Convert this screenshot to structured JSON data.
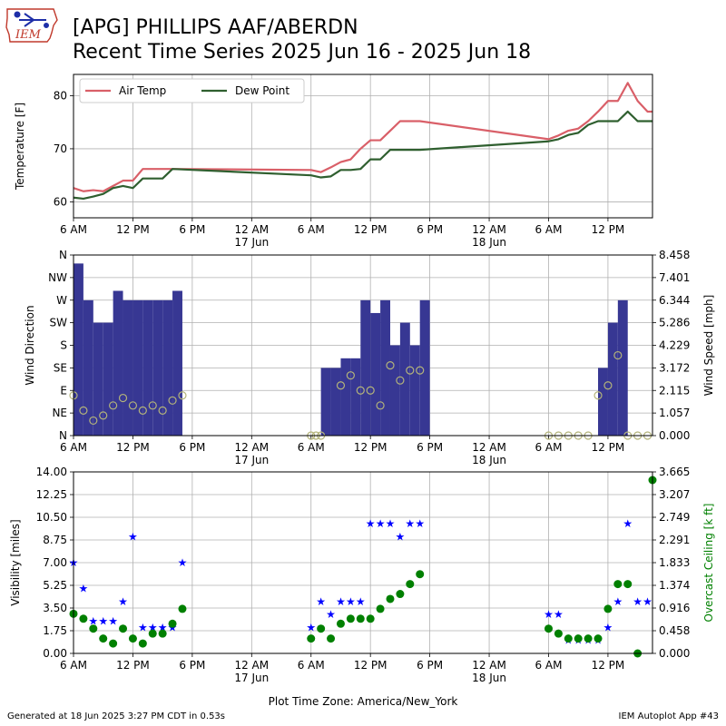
{
  "header": {
    "title_line1": "[APG] PHILLIPS AAF/ABERDN",
    "title_line2": "Recent Time Series 2025 Jun 16 - 2025 Jun 18",
    "logo_text": "IEM"
  },
  "footer": {
    "generated": "Generated at 18 Jun 2025 3:27 PM CDT in 0.53s",
    "app": "IEM Autoplot App #43"
  },
  "colors": {
    "air_temp": "#d95f68",
    "dew_point": "#2f5f2f",
    "wind_bar": "#373793",
    "wind_dir_marker": "#b3b37a",
    "visibility": "#0000ff",
    "ceiling": "#008000"
  },
  "x_axis": {
    "tick_hours": [
      0,
      6,
      12,
      18,
      24,
      30,
      36,
      42,
      48,
      54
    ],
    "tick_labels": [
      "6 AM",
      "12 PM",
      "6 PM",
      "12 AM",
      "6 AM",
      "12 PM",
      "6 PM",
      "12 AM",
      "6 AM",
      "12 PM"
    ],
    "day_labels": [
      {
        "hour": 18,
        "text": "17 Jun"
      },
      {
        "hour": 42,
        "text": "18 Jun"
      }
    ],
    "range_hours": [
      0,
      58.5
    ],
    "xlabel": "Plot Time Zone: America/New_York"
  },
  "chart_data": [
    {
      "type": "line",
      "ylabel": "Temperature [F]",
      "ylim": [
        57,
        84
      ],
      "yticks": [
        60,
        70,
        80
      ],
      "grid": true,
      "legend": "top-left",
      "series": [
        {
          "name": "Air Temp",
          "x": [
            0,
            1,
            2,
            3,
            4,
            5,
            6,
            7,
            8,
            9,
            10,
            24,
            25,
            26,
            27,
            28,
            29,
            30,
            31,
            32,
            33,
            34,
            35,
            48,
            49,
            50,
            51,
            52,
            53,
            54,
            55,
            56,
            57,
            58,
            58.5
          ],
          "values": [
            62.6,
            62.0,
            62.2,
            62.0,
            63.0,
            64.0,
            64.0,
            66.2,
            66.2,
            66.2,
            66.2,
            66.0,
            65.6,
            66.5,
            67.5,
            68.0,
            70.0,
            71.6,
            71.6,
            73.4,
            75.2,
            75.2,
            75.2,
            71.8,
            72.5,
            73.4,
            73.8,
            75.2,
            77.0,
            79.0,
            79.0,
            82.4,
            79.0,
            77.0,
            77.0
          ]
        },
        {
          "name": "Dew Point",
          "x": [
            0,
            1,
            2,
            3,
            4,
            5,
            6,
            7,
            8,
            9,
            10,
            24,
            25,
            26,
            27,
            28,
            29,
            30,
            31,
            32,
            33,
            34,
            35,
            48,
            49,
            50,
            51,
            52,
            53,
            54,
            55,
            56,
            57,
            58,
            58.5
          ],
          "values": [
            60.8,
            60.6,
            61.0,
            61.5,
            62.6,
            63.0,
            62.6,
            64.4,
            64.4,
            64.4,
            66.2,
            65.0,
            64.6,
            64.8,
            66.0,
            66.0,
            66.2,
            68.0,
            68.0,
            69.8,
            69.8,
            69.8,
            69.8,
            71.4,
            71.8,
            72.6,
            73.0,
            74.5,
            75.2,
            75.2,
            75.2,
            77.0,
            75.2,
            75.2,
            75.2
          ]
        }
      ]
    },
    {
      "type": "bar",
      "ylabel": "Wind Direction",
      "y2label": "Wind Speed [mph]",
      "ylim": [
        0,
        360
      ],
      "yticks": [
        0,
        45,
        90,
        135,
        180,
        225,
        270,
        315,
        360
      ],
      "yticklabels": [
        "N",
        "NE",
        "E",
        "SE",
        "S",
        "SW",
        "W",
        "NW",
        "N"
      ],
      "y2lim": [
        0,
        8.458
      ],
      "y2ticks": [
        "0.000",
        "1.057",
        "2.115",
        "3.172",
        "4.229",
        "5.286",
        "6.344",
        "7.401",
        "8.458"
      ],
      "grid": true,
      "series": [
        {
          "name": "",
          "x": [
            0.5,
            1.5,
            2.5,
            3.5,
            4.5,
            5.5,
            6.5,
            7.5,
            8.5,
            9.5,
            10.5,
            25.5,
            26.5,
            27.5,
            28.5,
            29.5,
            30.5,
            31.5,
            32.5,
            33.5,
            34.5,
            35.5,
            53.5,
            54.5,
            55.5
          ],
          "values": [
            8.06,
            6.34,
            5.29,
            5.29,
            6.78,
            6.34,
            6.34,
            6.34,
            6.34,
            6.34,
            6.78,
            3.17,
            3.17,
            3.62,
            3.62,
            6.34,
            5.74,
            6.34,
            4.23,
            5.29,
            4.23,
            6.34,
            3.17,
            5.29,
            6.34
          ]
        },
        {
          "name": "",
          "x": [
            0,
            1,
            2,
            3,
            4,
            5,
            6,
            7,
            8,
            9,
            10,
            11,
            24,
            24.5,
            25,
            27,
            28,
            29,
            30,
            31,
            32,
            33,
            34,
            35,
            48,
            49,
            50,
            51,
            52,
            53,
            54,
            55,
            56,
            57,
            58
          ],
          "values": [
            80,
            50,
            30,
            40,
            60,
            75,
            60,
            50,
            60,
            50,
            70,
            80,
            0,
            0,
            0,
            100,
            120,
            90,
            90,
            60,
            140,
            110,
            130,
            130,
            0,
            0,
            0,
            0,
            0,
            80,
            100,
            160,
            0,
            0,
            0
          ]
        }
      ]
    },
    {
      "type": "scatter",
      "ylabel": "Visibility [miles]",
      "y2label": "Overcast Ceiling [k ft]",
      "ylim": [
        0,
        14
      ],
      "yticks": [
        "0.00",
        "1.75",
        "3.50",
        "5.25",
        "7.00",
        "8.75",
        "10.50",
        "12.25",
        "14.00"
      ],
      "y2lim": [
        0,
        3.665
      ],
      "y2ticks": [
        "0.000",
        "0.458",
        "0.916",
        "1.374",
        "1.833",
        "2.291",
        "2.749",
        "3.207",
        "3.665"
      ],
      "grid": true,
      "series": [
        {
          "name": "",
          "x": [
            0,
            1,
            2,
            3,
            4,
            5,
            6,
            7,
            8,
            9,
            10,
            11,
            24,
            25,
            26,
            27,
            28,
            29,
            30,
            31,
            32,
            33,
            34,
            35,
            48,
            49,
            50,
            51,
            52,
            53,
            54,
            55,
            56,
            57,
            58
          ],
          "values": [
            7.0,
            5.0,
            2.5,
            2.5,
            2.5,
            4.0,
            9.0,
            2.0,
            2.0,
            2.0,
            2.0,
            7.0,
            2.0,
            4.0,
            3.0,
            4.0,
            4.0,
            4.0,
            10.0,
            10.0,
            10.0,
            9.0,
            10.0,
            10.0,
            3.0,
            3.0,
            1.0,
            1.0,
            1.0,
            1.0,
            2.0,
            4.0,
            10.0,
            4.0,
            4.0
          ]
        },
        {
          "name": "",
          "x": [
            0,
            1,
            2,
            3,
            4,
            5,
            6,
            7,
            8,
            9,
            10,
            11,
            24,
            25,
            26,
            27,
            28,
            29,
            30,
            31,
            32,
            33,
            34,
            35,
            48,
            49,
            50,
            51,
            52,
            53,
            54,
            55,
            56,
            57,
            58.5
          ],
          "values": [
            0.8,
            0.7,
            0.5,
            0.3,
            0.2,
            0.5,
            0.3,
            0.2,
            0.4,
            0.4,
            0.6,
            0.9,
            0.3,
            0.5,
            0.3,
            0.6,
            0.7,
            0.7,
            0.7,
            0.9,
            1.1,
            1.2,
            1.4,
            1.6,
            0.5,
            0.4,
            0.3,
            0.3,
            0.3,
            0.3,
            0.9,
            1.4,
            1.4,
            0.0,
            3.5
          ]
        }
      ]
    }
  ]
}
